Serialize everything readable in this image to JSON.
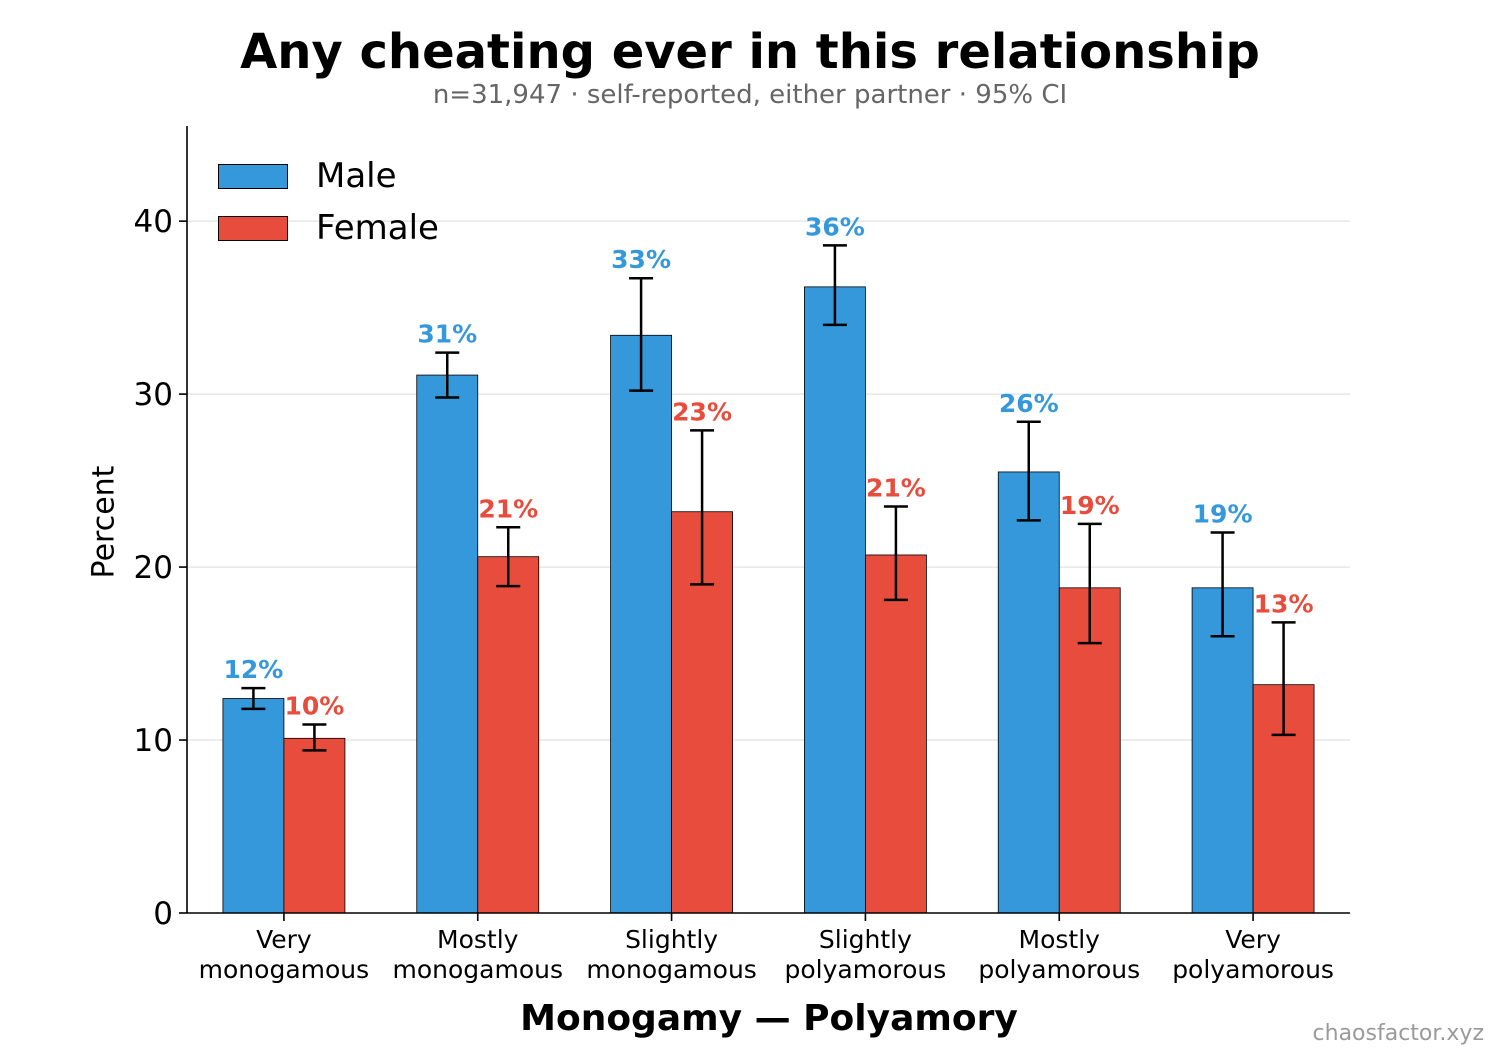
{
  "title": "Any cheating ever in this relationship",
  "subtitle": "n=31,947 · self-reported, either partner · 95% CI",
  "watermark": "chaosfactor.xyz",
  "colors": {
    "male": "#3498db",
    "female": "#e74c3c",
    "grid": "#e6e6e6"
  },
  "chart_data": {
    "type": "bar",
    "title": "Any cheating ever in this relationship",
    "subtitle": "n=31,947 · self-reported, either partner · 95% CI",
    "xlabel": "Monogamy — Polyamory",
    "ylabel": "Percent",
    "ylim": [
      0,
      45.5
    ],
    "yticks": [
      0,
      10,
      20,
      30,
      40
    ],
    "grid": true,
    "legend": "top-left",
    "categories": [
      [
        "Very",
        "monogamous"
      ],
      [
        "Mostly",
        "monogamous"
      ],
      [
        "Slightly",
        "monogamous"
      ],
      [
        "Slightly",
        "polyamorous"
      ],
      [
        "Mostly",
        "polyamorous"
      ],
      [
        "Very",
        "polyamorous"
      ]
    ],
    "series": [
      {
        "name": "Male",
        "values": [
          12.4,
          31.1,
          33.4,
          36.2,
          25.5,
          18.8
        ],
        "ci_low": [
          11.8,
          29.8,
          30.2,
          34.0,
          22.7,
          16.0
        ],
        "ci_high": [
          13.0,
          32.4,
          36.7,
          38.6,
          28.4,
          22.0
        ],
        "labels": [
          "12%",
          "31%",
          "33%",
          "36%",
          "26%",
          "19%"
        ]
      },
      {
        "name": "Female",
        "values": [
          10.1,
          20.6,
          23.2,
          20.7,
          18.8,
          13.2
        ],
        "ci_low": [
          9.4,
          18.9,
          19.0,
          18.1,
          15.6,
          10.3
        ],
        "ci_high": [
          10.9,
          22.3,
          27.9,
          23.5,
          22.5,
          16.8
        ],
        "labels": [
          "10%",
          "21%",
          "23%",
          "21%",
          "19%",
          "13%"
        ]
      }
    ]
  }
}
